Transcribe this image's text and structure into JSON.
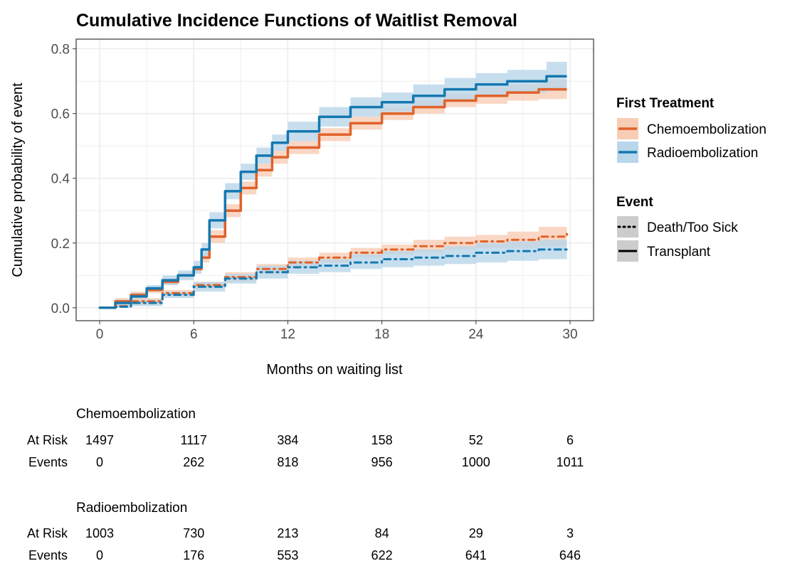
{
  "colors": {
    "chemo": "#E0622A",
    "radio": "#1478B0",
    "chemo_band": "#F8CDB5",
    "radio_band": "#B9D6EA",
    "grid": "#EBEBEB",
    "panel_border": "#333333"
  },
  "chart_data": {
    "type": "line",
    "title": "Cumulative Incidence Functions of Waitlist Removal",
    "xlabel": "Months on waiting list",
    "ylabel": "Cumulative probability of event",
    "xlim": [
      -1.5,
      31.5
    ],
    "ylim": [
      -0.04,
      0.83
    ],
    "xticks": [
      0,
      6,
      12,
      18,
      24,
      30
    ],
    "yticks": [
      0.0,
      0.2,
      0.4,
      0.6,
      0.8
    ],
    "xtick_labels": [
      "0",
      "6",
      "12",
      "18",
      "24",
      "30"
    ],
    "ytick_labels": [
      "0.0",
      "0.2",
      "0.4",
      "0.6",
      "0.8"
    ],
    "legend": {
      "treatment_title": "First Treatment",
      "treatment_items": [
        "Chemoembolization",
        "Radioembolization"
      ],
      "event_title": "Event",
      "event_items": [
        "Death/Too Sick",
        "Transplant"
      ]
    },
    "series": [
      {
        "name": "Chemoembolization - Transplant",
        "group": "Chemoembolization",
        "event": "Transplant",
        "x": [
          0,
          1,
          2,
          3,
          4,
          5,
          6,
          6.5,
          7,
          8,
          9,
          10,
          11,
          12,
          14,
          16,
          18,
          20,
          22,
          24,
          26,
          28,
          29.8
        ],
        "y": [
          0,
          0.02,
          0.04,
          0.055,
          0.08,
          0.1,
          0.12,
          0.155,
          0.22,
          0.3,
          0.37,
          0.425,
          0.465,
          0.495,
          0.535,
          0.57,
          0.6,
          0.62,
          0.64,
          0.655,
          0.665,
          0.675,
          0.675
        ],
        "lower": [
          0,
          0.01,
          0.03,
          0.045,
          0.07,
          0.09,
          0.11,
          0.14,
          0.2,
          0.28,
          0.35,
          0.405,
          0.445,
          0.475,
          0.515,
          0.55,
          0.58,
          0.6,
          0.62,
          0.63,
          0.64,
          0.645,
          0.645
        ],
        "upper": [
          0,
          0.03,
          0.05,
          0.065,
          0.09,
          0.11,
          0.13,
          0.17,
          0.24,
          0.32,
          0.39,
          0.445,
          0.485,
          0.515,
          0.555,
          0.59,
          0.62,
          0.64,
          0.66,
          0.68,
          0.69,
          0.705,
          0.705
        ]
      },
      {
        "name": "Radioembolization - Transplant",
        "group": "Radioembolization",
        "event": "Transplant",
        "x": [
          0,
          1,
          2,
          3,
          4,
          5,
          6,
          6.5,
          7,
          8,
          9,
          10,
          11,
          12,
          14,
          16,
          18,
          20,
          22,
          24,
          26,
          28,
          28.5,
          29.8
        ],
        "y": [
          0,
          0.015,
          0.035,
          0.06,
          0.085,
          0.1,
          0.125,
          0.18,
          0.27,
          0.36,
          0.42,
          0.47,
          0.51,
          0.545,
          0.59,
          0.62,
          0.635,
          0.655,
          0.675,
          0.69,
          0.7,
          0.7,
          0.715,
          0.715
        ],
        "lower": [
          0,
          0.005,
          0.025,
          0.05,
          0.07,
          0.085,
          0.105,
          0.16,
          0.245,
          0.335,
          0.395,
          0.445,
          0.485,
          0.515,
          0.56,
          0.59,
          0.605,
          0.62,
          0.64,
          0.655,
          0.665,
          0.665,
          0.67,
          0.67
        ],
        "upper": [
          0,
          0.025,
          0.045,
          0.07,
          0.1,
          0.115,
          0.145,
          0.2,
          0.295,
          0.385,
          0.445,
          0.495,
          0.535,
          0.575,
          0.62,
          0.65,
          0.665,
          0.69,
          0.71,
          0.725,
          0.735,
          0.735,
          0.76,
          0.76
        ]
      },
      {
        "name": "Chemoembolization - Death/Too Sick",
        "group": "Chemoembolization",
        "event": "Death/Too Sick",
        "x": [
          0,
          1,
          2,
          4,
          6,
          8,
          10,
          12,
          14,
          16,
          18,
          20,
          22,
          24,
          26,
          28,
          29.8
        ],
        "y": [
          0,
          0.005,
          0.02,
          0.045,
          0.07,
          0.095,
          0.12,
          0.14,
          0.155,
          0.17,
          0.18,
          0.19,
          0.2,
          0.205,
          0.21,
          0.22,
          0.228
        ],
        "lower": [
          0,
          0.0,
          0.01,
          0.035,
          0.06,
          0.08,
          0.105,
          0.125,
          0.14,
          0.155,
          0.165,
          0.17,
          0.18,
          0.185,
          0.185,
          0.19,
          0.195
        ],
        "upper": [
          0,
          0.01,
          0.03,
          0.055,
          0.08,
          0.11,
          0.135,
          0.155,
          0.17,
          0.185,
          0.195,
          0.21,
          0.22,
          0.225,
          0.235,
          0.25,
          0.26
        ]
      },
      {
        "name": "Radioembolization - Death/Too Sick",
        "group": "Radioembolization",
        "event": "Death/Too Sick",
        "x": [
          0,
          1,
          2,
          4,
          6,
          8,
          10,
          12,
          14,
          16,
          18,
          20,
          22,
          24,
          26,
          28,
          29.8
        ],
        "y": [
          0,
          0.003,
          0.015,
          0.04,
          0.065,
          0.09,
          0.11,
          0.125,
          0.13,
          0.14,
          0.15,
          0.155,
          0.16,
          0.17,
          0.175,
          0.18,
          0.185
        ],
        "lower": [
          0,
          0.0,
          0.005,
          0.03,
          0.05,
          0.075,
          0.09,
          0.105,
          0.11,
          0.12,
          0.125,
          0.13,
          0.135,
          0.14,
          0.145,
          0.15,
          0.15
        ],
        "upper": [
          0,
          0.01,
          0.025,
          0.05,
          0.08,
          0.105,
          0.13,
          0.145,
          0.15,
          0.165,
          0.175,
          0.18,
          0.19,
          0.2,
          0.205,
          0.21,
          0.215
        ]
      }
    ]
  },
  "risk_table": {
    "row_labels": {
      "at_risk": "At Risk",
      "events": "Events"
    },
    "groups": [
      {
        "name": "Chemoembolization",
        "at_risk": [
          "1497",
          "1117",
          "384",
          "158",
          "52",
          "6"
        ],
        "events": [
          "0",
          "262",
          "818",
          "956",
          "1000",
          "1011"
        ]
      },
      {
        "name": "Radioembolization",
        "at_risk": [
          "1003",
          "730",
          "213",
          "84",
          "29",
          "3"
        ],
        "events": [
          "0",
          "176",
          "553",
          "622",
          "641",
          "646"
        ]
      }
    ]
  }
}
